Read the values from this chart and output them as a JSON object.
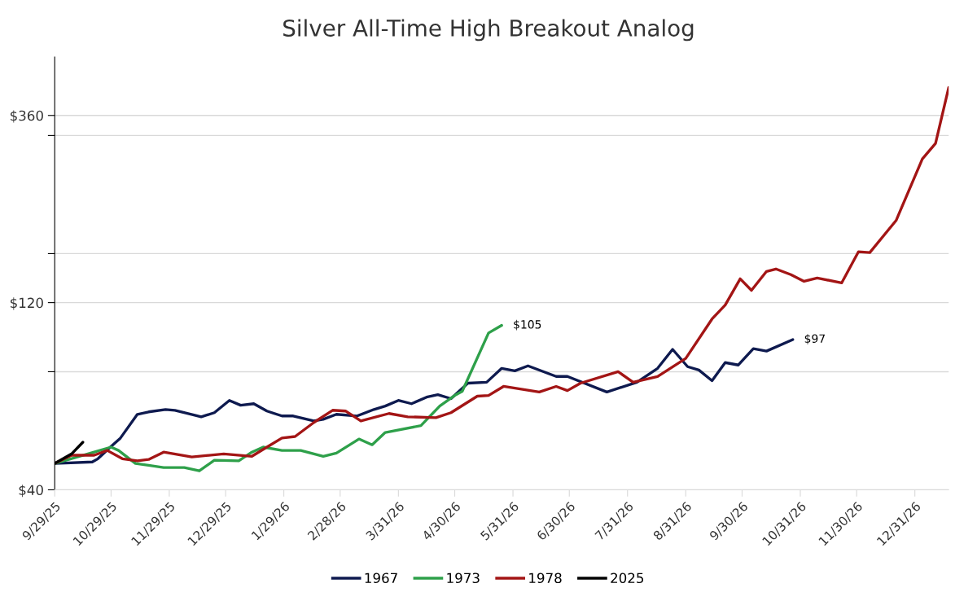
{
  "chart_data": {
    "type": "line",
    "title": "Silver All-Time High Breakout Analog",
    "log": "y",
    "grid": "y",
    "legend": "bottom",
    "marker": "none",
    "line_style": "solid",
    "xlim": [
      "2025-09-29",
      "2027-01-18"
    ],
    "ylim": [
      40,
      507
    ],
    "yticks": [
      {
        "value": 40,
        "label": "$40"
      },
      {
        "value": 80,
        "label": null
      },
      {
        "value": 120,
        "label": "$120"
      },
      {
        "value": 160,
        "label": null
      },
      {
        "value": 320,
        "label": null
      },
      {
        "value": 360,
        "label": "$360"
      }
    ],
    "xticks": [
      {
        "value": "2025-09-29",
        "label": "9/29/25"
      },
      {
        "value": "2025-10-29",
        "label": "10/29/25"
      },
      {
        "value": "2025-11-29",
        "label": "11/29/25"
      },
      {
        "value": "2025-12-29",
        "label": "12/29/25"
      },
      {
        "value": "2026-01-29",
        "label": "1/29/26"
      },
      {
        "value": "2026-02-28",
        "label": "2/28/26"
      },
      {
        "value": "2026-03-31",
        "label": "3/31/26"
      },
      {
        "value": "2026-04-30",
        "label": "4/30/26"
      },
      {
        "value": "2026-05-31",
        "label": "5/31/26"
      },
      {
        "value": "2026-06-30",
        "label": "6/30/26"
      },
      {
        "value": "2026-07-31",
        "label": "7/31/26"
      },
      {
        "value": "2026-08-31",
        "label": "8/31/26"
      },
      {
        "value": "2026-09-30",
        "label": "9/30/26"
      },
      {
        "value": "2026-10-31",
        "label": "10/31/26"
      },
      {
        "value": "2026-11-30",
        "label": "11/30/26"
      },
      {
        "value": "2026-12-31",
        "label": "12/31/26"
      }
    ],
    "annotations": [
      {
        "text": "$105",
        "x": "2026-05-25",
        "y": 105
      },
      {
        "text": "$97",
        "x": "2026-10-27",
        "y": 96.6
      }
    ],
    "series": [
      {
        "name": "1967",
        "color": "#0e1a4f",
        "x": [
          "2025-09-29",
          "2025-10-19",
          "2025-10-22",
          "2025-10-29",
          "2025-11-03",
          "2025-11-12",
          "2025-11-18",
          "2025-11-27",
          "2025-12-02",
          "2025-12-16",
          "2025-12-23",
          "2025-12-31",
          "2026-01-06",
          "2026-01-13",
          "2026-01-20",
          "2026-01-28",
          "2026-02-03",
          "2026-02-14",
          "2026-02-19",
          "2026-02-26",
          "2026-03-09",
          "2026-03-18",
          "2026-03-24",
          "2026-03-31",
          "2026-04-07",
          "2026-04-15",
          "2026-04-21",
          "2026-04-28",
          "2026-05-07",
          "2026-05-17",
          "2026-05-25",
          "2026-06-01",
          "2026-06-08",
          "2026-06-23",
          "2026-06-29",
          "2026-07-20",
          "2026-08-05",
          "2026-08-16",
          "2026-08-24",
          "2026-09-01",
          "2026-09-07",
          "2026-09-14",
          "2026-09-21",
          "2026-09-28",
          "2026-10-06",
          "2026-10-13",
          "2026-10-27"
        ],
        "values": [
          46.7,
          47.1,
          48.0,
          51.6,
          54.2,
          62.3,
          63.2,
          64.1,
          63.8,
          61.4,
          62.9,
          67.6,
          65.7,
          66.3,
          63.5,
          61.7,
          61.7,
          59.9,
          60.5,
          62.3,
          61.7,
          64.1,
          65.4,
          67.6,
          66.3,
          68.9,
          69.9,
          68.3,
          74.8,
          75.2,
          81.6,
          80.4,
          82.8,
          77.8,
          77.8,
          71.0,
          75.2,
          81.6,
          91.2,
          82.4,
          80.8,
          75.9,
          84.4,
          83.2,
          91.6,
          90.3,
          96.6
        ]
      },
      {
        "name": "1973",
        "color": "#2ea04a",
        "x": [
          "2025-09-29",
          "2025-10-20",
          "2025-10-29",
          "2025-11-02",
          "2025-11-11",
          "2025-11-18",
          "2025-11-26",
          "2025-12-07",
          "2025-12-15",
          "2025-12-23",
          "2026-01-05",
          "2026-01-12",
          "2026-01-18",
          "2026-01-28",
          "2026-02-07",
          "2026-02-19",
          "2026-02-26",
          "2026-03-10",
          "2026-03-17",
          "2026-03-24",
          "2026-04-12",
          "2026-04-22",
          "2026-04-30",
          "2026-05-04",
          "2026-05-18",
          "2026-05-25"
        ],
        "values": [
          46.7,
          49.9,
          51.4,
          50.4,
          46.7,
          46.2,
          45.6,
          45.6,
          44.7,
          47.6,
          47.4,
          49.9,
          51.4,
          50.4,
          50.4,
          48.7,
          49.6,
          53.9,
          52.1,
          56.0,
          58.3,
          65.4,
          69.6,
          71.3,
          100.4,
          105
        ]
      },
      {
        "name": "1978",
        "color": "#a31515",
        "x": [
          "2025-09-29",
          "2025-10-08",
          "2025-10-20",
          "2025-10-27",
          "2025-11-04",
          "2025-11-12",
          "2025-11-18",
          "2025-11-26",
          "2025-12-11",
          "2025-12-28",
          "2026-01-12",
          "2026-01-20",
          "2026-01-28",
          "2026-02-04",
          "2026-02-14",
          "2026-02-24",
          "2026-03-03",
          "2026-03-11",
          "2026-03-26",
          "2026-04-05",
          "2026-04-20",
          "2026-04-28",
          "2026-05-12",
          "2026-05-18",
          "2026-05-26",
          "2026-06-14",
          "2026-06-23",
          "2026-06-29",
          "2026-07-06",
          "2026-07-26",
          "2026-08-03",
          "2026-08-16",
          "2026-08-31",
          "2026-09-14",
          "2026-09-21",
          "2026-09-29",
          "2026-10-05",
          "2026-10-13",
          "2026-10-18",
          "2026-10-26",
          "2026-11-02",
          "2026-11-09",
          "2026-11-22",
          "2026-12-01",
          "2026-12-07",
          "2026-12-21",
          "2027-01-04",
          "2027-01-11",
          "2027-01-18"
        ],
        "values": [
          46.7,
          49.0,
          49.0,
          50.4,
          48.0,
          47.4,
          47.8,
          49.9,
          48.5,
          49.4,
          48.7,
          51.4,
          54.2,
          54.7,
          59.4,
          63.8,
          63.5,
          59.9,
          62.6,
          61.4,
          61.1,
          62.9,
          69.3,
          69.6,
          73.4,
          71.0,
          73.4,
          71.6,
          74.8,
          80.0,
          75.2,
          77.8,
          86.5,
          109.0,
          118.3,
          138.0,
          129.0,
          144.1,
          146.2,
          141.4,
          136.0,
          138.7,
          134.7,
          161.8,
          161.0,
          194.3,
          278.9,
          305.5,
          424.0
        ]
      },
      {
        "name": "2025",
        "color": "#000000",
        "x": [
          "2025-09-29",
          "2025-10-08",
          "2025-10-14"
        ],
        "values": [
          46.7,
          49.4,
          52.9
        ]
      }
    ]
  }
}
